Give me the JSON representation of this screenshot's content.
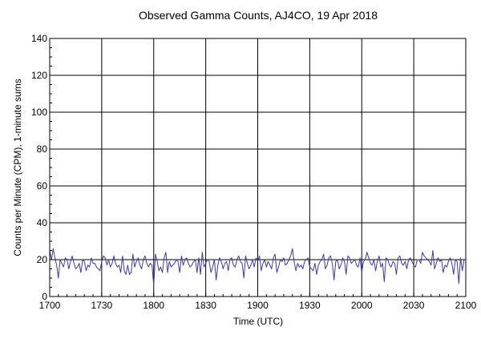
{
  "chart_data": {
    "type": "line",
    "title": "Observed Gamma Counts, AJ4CO, 19 Apr 2018",
    "xlabel": "Time (UTC)",
    "ylabel": "Counts per Minute (CPM), 1-minute sums",
    "x_ticks": [
      "1700",
      "1730",
      "1800",
      "1830",
      "1900",
      "1930",
      "2000",
      "2030",
      "2100"
    ],
    "y_ticks": [
      0,
      20,
      40,
      60,
      80,
      100,
      120,
      140
    ],
    "xlim": [
      "17:00",
      "21:00"
    ],
    "ylim": [
      0,
      140
    ],
    "grid": true,
    "line_color": "#3b3ba0",
    "series": [
      {
        "x_start": "17:00",
        "x_step_minutes": 1,
        "values": [
          25,
          20,
          26,
          21,
          17,
          10,
          20,
          18,
          16,
          21,
          20,
          15,
          19,
          22,
          18,
          15,
          16,
          18,
          13,
          20,
          19,
          14,
          17,
          16,
          21,
          18,
          18,
          16,
          15,
          14,
          19,
          22,
          21,
          17,
          20,
          16,
          18,
          22,
          18,
          16,
          17,
          13,
          22,
          14,
          12,
          17,
          12,
          13,
          23,
          16,
          19,
          21,
          17,
          15,
          20,
          22,
          18,
          16,
          18,
          17,
          6,
          23,
          19,
          14,
          16,
          13,
          21,
          24,
          13,
          19,
          16,
          17,
          18,
          20,
          19,
          13,
          22,
          17,
          20,
          21,
          18,
          16,
          17,
          19,
          20,
          13,
          21,
          12,
          24,
          16,
          18,
          20,
          19,
          13,
          16,
          20,
          9,
          17,
          21,
          19,
          15,
          18,
          19,
          14,
          20,
          21,
          17,
          16,
          20,
          22,
          19,
          18,
          10,
          22,
          18,
          15,
          17,
          20,
          16,
          21,
          19,
          22,
          14,
          18,
          20,
          16,
          19,
          17,
          15,
          21,
          23,
          13,
          16,
          20,
          19,
          21,
          17,
          18,
          20,
          22,
          26,
          19,
          14,
          18,
          16,
          17,
          15,
          19,
          20,
          21,
          16,
          15,
          14,
          18,
          12,
          17,
          19,
          20,
          23,
          15,
          17,
          21,
          22,
          18,
          9,
          19,
          20,
          15,
          17,
          21,
          19,
          12,
          22,
          21,
          18,
          19,
          20,
          17,
          16,
          21,
          13,
          19,
          20,
          24,
          21,
          18,
          17,
          20,
          14,
          19,
          22,
          16,
          18,
          8,
          21,
          20,
          17,
          16,
          19,
          18,
          12,
          21,
          22,
          18,
          17,
          19,
          15,
          20,
          21,
          19,
          17,
          16,
          20,
          20,
          18,
          24,
          22,
          21,
          20,
          19,
          17,
          25,
          15,
          18,
          21,
          19,
          20,
          13,
          17,
          16,
          19,
          21,
          18,
          12,
          20,
          19,
          7,
          21,
          14,
          20
        ]
      }
    ]
  }
}
